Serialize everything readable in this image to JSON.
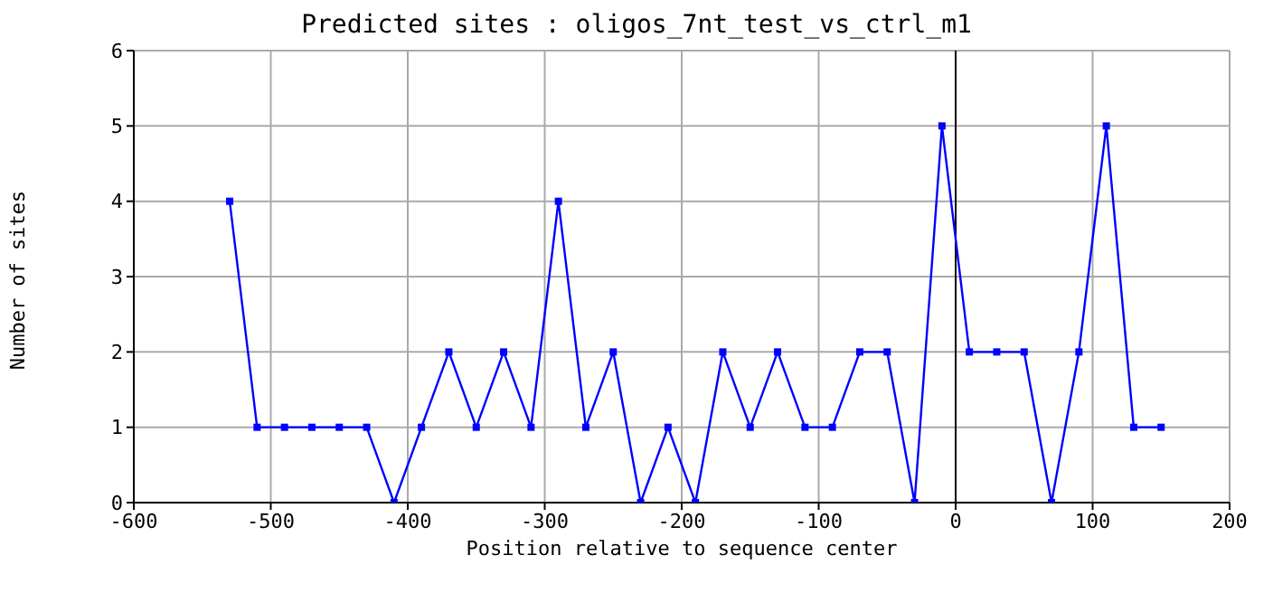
{
  "chart_data": {
    "type": "line",
    "title": "Predicted sites : oligos_7nt_test_vs_ctrl_m1",
    "xlabel": "Position relative to sequence center",
    "ylabel": "Number of sites",
    "x": [
      -530,
      -510,
      -490,
      -470,
      -450,
      -430,
      -410,
      -390,
      -370,
      -350,
      -330,
      -310,
      -290,
      -270,
      -250,
      -230,
      -210,
      -190,
      -170,
      -150,
      -130,
      -110,
      -90,
      -70,
      -50,
      -30,
      -10,
      10,
      30,
      50,
      70,
      90,
      110,
      130,
      150
    ],
    "series": [
      {
        "color": "#0000ff",
        "values": [
          4,
          1,
          1,
          1,
          1,
          1,
          0,
          1,
          2,
          1,
          2,
          1,
          4,
          1,
          2,
          0,
          1,
          0,
          2,
          1,
          2,
          1,
          1,
          2,
          2,
          0,
          5,
          2,
          2,
          2,
          0,
          2,
          5,
          1,
          1
        ]
      }
    ],
    "xlim": [
      -600,
      200
    ],
    "xticks": [
      -600,
      -500,
      -400,
      -300,
      -200,
      -100,
      0,
      100,
      200
    ],
    "ylim": [
      0,
      6
    ],
    "yticks": [
      0,
      1,
      2,
      3,
      4,
      5,
      6
    ],
    "grid": true,
    "marker": "square",
    "line_style": "solid",
    "ref_lines": [
      {
        "axis": "x",
        "value": 0,
        "color": "#000000"
      }
    ]
  }
}
